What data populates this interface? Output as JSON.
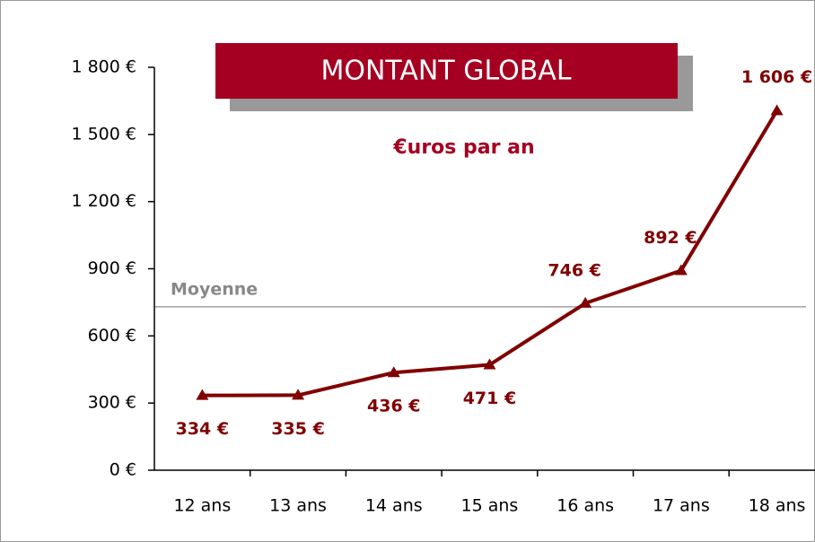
{
  "chart_data": {
    "type": "line",
    "title": "MONTANT GLOBAL",
    "subtitle": "€uros par an",
    "categories": [
      "12 ans",
      "13 ans",
      "14 ans",
      "15 ans",
      "16 ans",
      "17 ans",
      "18 ans"
    ],
    "series": [
      {
        "name": "Montant",
        "color": "#800000",
        "values": [
          334,
          335,
          436,
          471,
          746,
          892,
          1606
        ],
        "value_labels": [
          "334 €",
          "335 €",
          "436 €",
          "471 €",
          "746 €",
          "892 €",
          "1 606 €"
        ]
      }
    ],
    "ylim": [
      0,
      1800
    ],
    "yticks": [
      {
        "value": 0,
        "label": "0 €"
      },
      {
        "value": 300,
        "label": "300 €"
      },
      {
        "value": 600,
        "label": "600 €"
      },
      {
        "value": 900,
        "label": "900 €"
      },
      {
        "value": 1200,
        "label": "1 200 €"
      },
      {
        "value": 1500,
        "label": "1 500 €"
      },
      {
        "value": 1800,
        "label": "1 800 €"
      }
    ],
    "reference_line": {
      "label": "Moyenne",
      "value": 730,
      "color": "#a0a0a0"
    }
  }
}
